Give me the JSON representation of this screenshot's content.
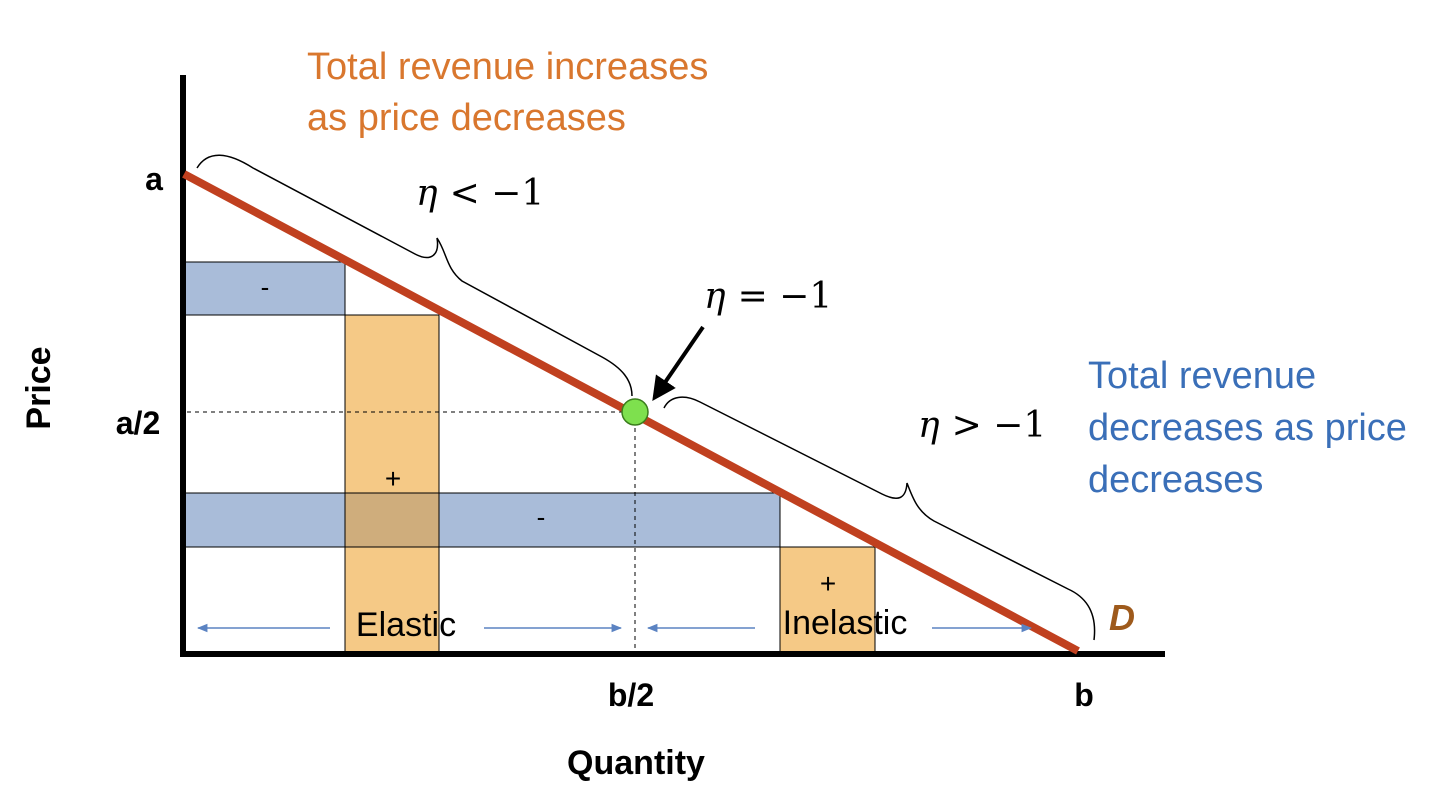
{
  "annotations": {
    "elastic_note_line1": "Total revenue increases",
    "elastic_note_line2": "as price decreases",
    "inelastic_note_line1": "Total revenue",
    "inelastic_note_line2": "decreases as price",
    "inelastic_note_line3": "decreases"
  },
  "axes": {
    "y_label": "Price",
    "x_label": "Quantity",
    "y_tick_top": "a",
    "y_tick_mid": "a/2",
    "x_tick_mid": "b/2",
    "x_tick_end": "b"
  },
  "curve": {
    "demand_label": "D"
  },
  "elasticity": {
    "upper_symbol": "η",
    "upper_rel": "< −1",
    "unit_symbol": "η",
    "unit_rel": "= −1",
    "lower_symbol": "η",
    "lower_rel": "> −1"
  },
  "regions": {
    "elastic": "Elastic",
    "inelastic": "Inelastic"
  },
  "rect_signs": {
    "upper_loss": "-",
    "upper_gain": "+",
    "lower_loss": "-",
    "lower_gain": "+"
  },
  "colors": {
    "demand_line": "#c0401f",
    "loss_fill": "#a9bcd9",
    "gain_fill": "#f5c986",
    "overlap_fill": "#cfad7c",
    "elastic_note": "#d9772e",
    "inelastic_note": "#3a6fb8",
    "demand_label": "#9e5a1c",
    "midpoint": "#7ee04e",
    "arrow_blue": "#5b83c2"
  }
}
